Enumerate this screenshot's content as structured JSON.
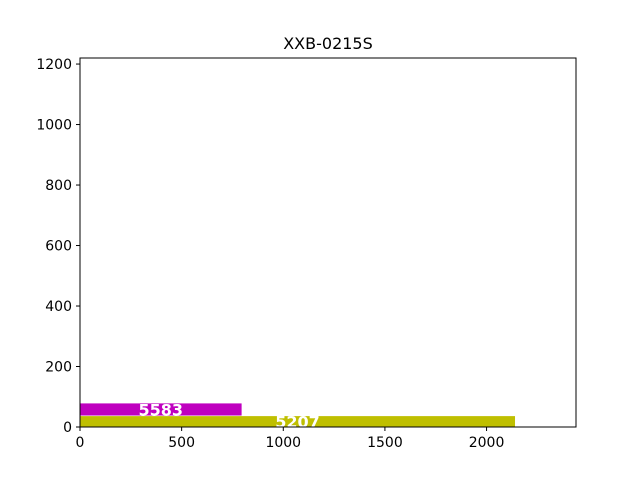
{
  "chart_data": {
    "type": "bar",
    "orientation": "horizontal",
    "title": "XXB-0215S",
    "xlabel": "",
    "ylabel": "",
    "xlim": [
      0,
      2440
    ],
    "ylim": [
      0,
      1220
    ],
    "x_ticks": [
      0,
      500,
      1000,
      1500,
      2000
    ],
    "y_ticks": [
      0,
      200,
      400,
      600,
      800,
      1000,
      1200
    ],
    "grid": false,
    "legend": "none",
    "bars": [
      {
        "label": "5207",
        "y_bottom": 0,
        "y_top": 36,
        "width": 2140,
        "color": "#bfbf00"
      },
      {
        "label": "5583",
        "y_bottom": 38,
        "y_top": 78,
        "width": 795,
        "color": "#bf00bf"
      }
    ]
  }
}
